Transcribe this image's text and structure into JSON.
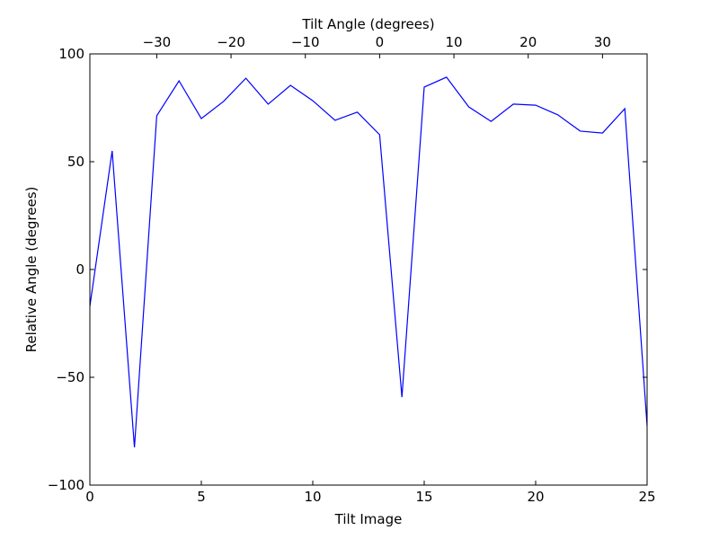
{
  "chart_data": {
    "type": "line",
    "xlabel": "Tilt Image",
    "ylabel": "Relative Angle (degrees)",
    "x2label": "Tilt Angle (degrees)",
    "x": [
      0,
      1,
      2,
      3,
      4,
      5,
      6,
      7,
      8,
      9,
      10,
      11,
      12,
      13,
      14,
      15,
      16,
      17,
      18,
      19,
      20,
      21,
      22,
      23,
      24,
      25
    ],
    "series": [
      {
        "color": "#0000ff",
        "values": [
          -17,
          55,
          -82.5,
          71.3,
          87.5,
          70,
          78,
          88.7,
          76.7,
          85.4,
          78.3,
          69.2,
          73,
          62.5,
          -59.2,
          84.6,
          89.2,
          75.4,
          68.7,
          76.7,
          76.2,
          71.7,
          64.2,
          63.3,
          74.6,
          -72.5
        ]
      }
    ],
    "xlim": [
      0,
      25
    ],
    "xticks": [
      0,
      5,
      10,
      15,
      20,
      25
    ],
    "ylim": [
      -100,
      100
    ],
    "yticks": [
      {
        "value": -100,
        "label": "−100"
      },
      {
        "value": -50,
        "label": "−50"
      },
      0,
      50,
      100
    ],
    "x2lim": [
      -39,
      36
    ],
    "x2ticks": [
      {
        "value": -30,
        "label": "−30"
      },
      {
        "value": -20,
        "label": "−20"
      },
      {
        "value": -10,
        "label": "−10"
      },
      0,
      10,
      20,
      30
    ]
  }
}
